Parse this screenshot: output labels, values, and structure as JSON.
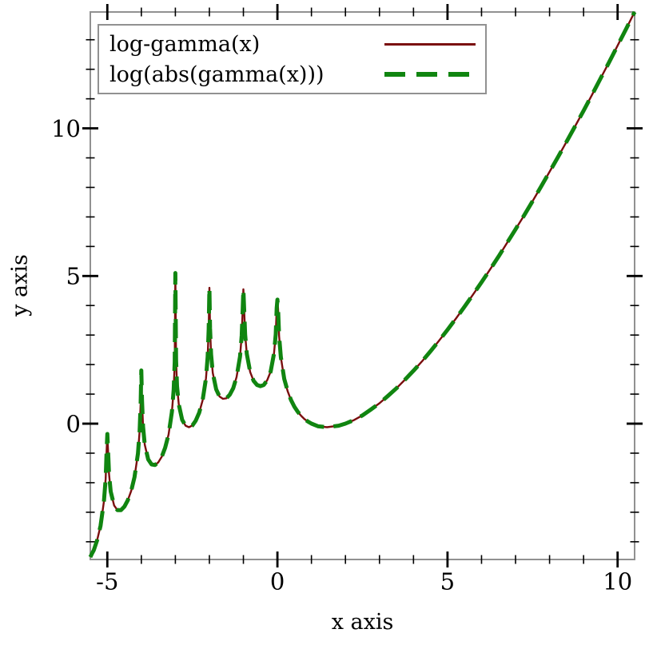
{
  "figure": {
    "background": "#ffffff",
    "frame_color": "#919191",
    "tick_color": "#000000"
  },
  "legend": {
    "entries": [
      {
        "label": "log-gamma(x)",
        "color": "#7a0e0e",
        "style": "solid"
      },
      {
        "label": "log(abs(gamma(x)))",
        "color": "#108510",
        "style": "long-dash"
      }
    ]
  },
  "chart_data": {
    "type": "line",
    "title": "",
    "xlabel": "x axis",
    "ylabel": "y axis",
    "xlim": [
      -5.5,
      10.5
    ],
    "ylim": [
      -4.6,
      13.94
    ],
    "grid": false,
    "legend_position": "top-left",
    "x_major_ticks": [
      {
        "value": -5,
        "label": "-5"
      },
      {
        "value": 0,
        "label": "0"
      },
      {
        "value": 5,
        "label": "5"
      },
      {
        "value": 10,
        "label": "10"
      }
    ],
    "x_minor_ticks": [
      -4,
      -3,
      -2,
      -1,
      1,
      2,
      3,
      4,
      6,
      7,
      8,
      9
    ],
    "y_major_ticks": [
      {
        "value": 0,
        "label": "0"
      },
      {
        "value": 5,
        "label": "5"
      },
      {
        "value": 10,
        "label": "10"
      }
    ],
    "y_minor_ticks": [
      -4,
      -3,
      -2,
      -1,
      1,
      2,
      3,
      4,
      6,
      7,
      8,
      9,
      11,
      12,
      13
    ],
    "series": [
      {
        "name": "log-gamma(x)",
        "color": "#7a0e0e",
        "width": 2.4,
        "dash": null
      },
      {
        "name": "log(abs(gamma(x)))",
        "color": "#108510",
        "width": 5,
        "dash": [
          24,
          12
        ]
      }
    ],
    "points": [
      [
        -5.5,
        -4.52
      ],
      [
        -5.45,
        -4.4
      ],
      [
        -5.4,
        -4.29
      ],
      [
        -5.3,
        -3.95
      ],
      [
        -5.2,
        -3.46
      ],
      [
        -5.1,
        -2.64
      ],
      [
        -5.05,
        -1.87
      ],
      [
        -5.02,
        -0.91
      ],
      [
        -5.0,
        -0.35
      ],
      [
        -4.98,
        -0.84
      ],
      [
        -4.95,
        -1.7
      ],
      [
        -4.9,
        -2.3
      ],
      [
        -4.8,
        -2.77
      ],
      [
        -4.7,
        -2.93
      ],
      [
        -4.6,
        -2.93
      ],
      [
        -4.5,
        -2.81
      ],
      [
        -4.4,
        -2.6
      ],
      [
        -4.3,
        -2.28
      ],
      [
        -4.2,
        -1.81
      ],
      [
        -4.1,
        -1.01
      ],
      [
        -4.05,
        -0.25
      ],
      [
        -4.02,
        0.71
      ],
      [
        -4.0,
        1.8
      ],
      [
        -3.98,
        0.77
      ],
      [
        -3.95,
        -0.1
      ],
      [
        -3.9,
        -0.71
      ],
      [
        -3.8,
        -1.21
      ],
      [
        -3.7,
        -1.38
      ],
      [
        -3.6,
        -1.4
      ],
      [
        -3.5,
        -1.31
      ],
      [
        -3.4,
        -1.12
      ],
      [
        -3.3,
        -0.82
      ],
      [
        -3.2,
        -0.37
      ],
      [
        -3.1,
        0.4
      ],
      [
        -3.05,
        1.15
      ],
      [
        -3.02,
        2.1
      ],
      [
        -3.0,
        5.1
      ],
      [
        -2.98,
        2.15
      ],
      [
        -2.95,
        1.27
      ],
      [
        -2.9,
        0.65
      ],
      [
        -2.8,
        0.13
      ],
      [
        -2.7,
        -0.07
      ],
      [
        -2.6,
        -0.12
      ],
      [
        -2.5,
        -0.06
      ],
      [
        -2.4,
        0.1
      ],
      [
        -2.3,
        0.37
      ],
      [
        -2.2,
        0.79
      ],
      [
        -2.1,
        1.53
      ],
      [
        -2.05,
        2.26
      ],
      [
        -2.02,
        3.2
      ],
      [
        -2.0,
        4.6
      ],
      [
        -1.98,
        3.23
      ],
      [
        -1.95,
        2.35
      ],
      [
        -1.9,
        1.72
      ],
      [
        -1.8,
        1.16
      ],
      [
        -1.7,
        0.92
      ],
      [
        -1.6,
        0.84
      ],
      [
        -1.5,
        0.86
      ],
      [
        -1.4,
        0.98
      ],
      [
        -1.3,
        1.2
      ],
      [
        -1.2,
        1.58
      ],
      [
        -1.1,
        2.27
      ],
      [
        -1.05,
        2.98
      ],
      [
        -1.02,
        3.9
      ],
      [
        -1.0,
        4.55
      ],
      [
        -0.98,
        3.92
      ],
      [
        -0.95,
        3.02
      ],
      [
        -0.9,
        2.36
      ],
      [
        -0.8,
        1.75
      ],
      [
        -0.7,
        1.45
      ],
      [
        -0.6,
        1.31
      ],
      [
        -0.5,
        1.27
      ],
      [
        -0.4,
        1.31
      ],
      [
        -0.3,
        1.47
      ],
      [
        -0.2,
        1.76
      ],
      [
        -0.1,
        2.37
      ],
      [
        -0.05,
        3.03
      ],
      [
        -0.02,
        3.92
      ],
      [
        0,
        4.2
      ],
      [
        0.02,
        3.9
      ],
      [
        0.05,
        2.97
      ],
      [
        0.1,
        2.25
      ],
      [
        0.2,
        1.52
      ],
      [
        0.3,
        1.1
      ],
      [
        0.4,
        0.8
      ],
      [
        0.5,
        0.57
      ],
      [
        0.6,
        0.4
      ],
      [
        0.7,
        0.26
      ],
      [
        0.8,
        0.15
      ],
      [
        0.9,
        0.07
      ],
      [
        1.0,
        0
      ],
      [
        1.2,
        -0.09
      ],
      [
        1.46,
        -0.12
      ],
      [
        1.8,
        -0.07
      ],
      [
        2.0,
        0
      ],
      [
        2.25,
        0.12
      ],
      [
        2.5,
        0.28
      ],
      [
        2.75,
        0.48
      ],
      [
        3.0,
        0.69
      ],
      [
        3.25,
        0.94
      ],
      [
        3.5,
        1.2
      ],
      [
        3.75,
        1.49
      ],
      [
        4.0,
        1.79
      ],
      [
        4.25,
        2.11
      ],
      [
        4.5,
        2.45
      ],
      [
        4.75,
        2.81
      ],
      [
        5.0,
        3.18
      ],
      [
        5.25,
        3.56
      ],
      [
        5.5,
        3.96
      ],
      [
        5.75,
        4.37
      ],
      [
        6.0,
        4.79
      ],
      [
        6.25,
        5.22
      ],
      [
        6.5,
        5.66
      ],
      [
        6.75,
        6.12
      ],
      [
        7.0,
        6.58
      ],
      [
        7.25,
        7.05
      ],
      [
        7.5,
        7.53
      ],
      [
        7.75,
        8.03
      ],
      [
        8.0,
        8.53
      ],
      [
        8.25,
        9.03
      ],
      [
        8.5,
        9.55
      ],
      [
        8.75,
        10.07
      ],
      [
        9.0,
        10.6
      ],
      [
        9.25,
        11.14
      ],
      [
        9.5,
        11.69
      ],
      [
        9.75,
        12.24
      ],
      [
        10.0,
        12.8
      ],
      [
        10.25,
        13.37
      ],
      [
        10.5,
        13.94
      ]
    ]
  }
}
